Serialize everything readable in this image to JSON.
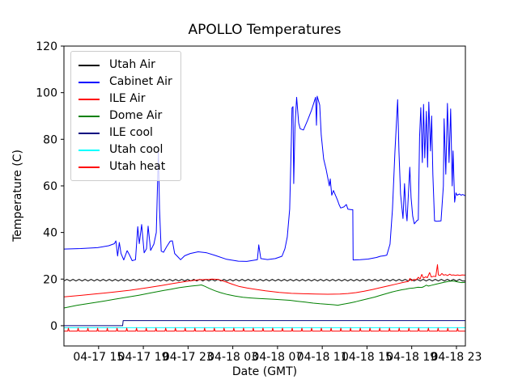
{
  "chart_data": {
    "type": "line",
    "title": "APOLLO Temperatures",
    "xlabel": "Date (GMT)",
    "ylabel": "Temperature (C)",
    "x_unit": "hours since 2000-04-17 00:00 GMT",
    "xlim_hours": [
      11.9,
      47.8
    ],
    "ylim": [
      -8.7,
      120
    ],
    "y_ticks": [
      0,
      20,
      40,
      60,
      80,
      100,
      120
    ],
    "x_ticks_hours": [
      15,
      19,
      23,
      27,
      31,
      35,
      39,
      43,
      47
    ],
    "x_tick_labels": [
      "04-17 15",
      "04-17 19",
      "04-17 23",
      "04-18 03",
      "04-18 07",
      "04-18 11",
      "04-18 15",
      "04-18 19",
      "04-18 23"
    ],
    "grid": false,
    "legend_position": "upper left",
    "series": [
      {
        "name": "Utah Air",
        "color": "#000000",
        "pattern": {
          "type": "zigzag",
          "x_start": 11.9,
          "x_end": 47.78,
          "step": 0.27,
          "high": 19.9,
          "low": 19.2
        }
      },
      {
        "name": "Cabinet Air",
        "color": "#0000ff",
        "points": [
          [
            11.9,
            32.9
          ],
          [
            13.4,
            33.1
          ],
          [
            14.9,
            33.5
          ],
          [
            15.9,
            34.3
          ],
          [
            16.4,
            35.2
          ],
          [
            16.55,
            36.4
          ],
          [
            16.7,
            29.9
          ],
          [
            16.85,
            35.7
          ],
          [
            17.0,
            31.0
          ],
          [
            17.25,
            28.2
          ],
          [
            17.55,
            32.2
          ],
          [
            17.75,
            30.5
          ],
          [
            18.0,
            27.9
          ],
          [
            18.3,
            28.3
          ],
          [
            18.5,
            42.5
          ],
          [
            18.64,
            35.2
          ],
          [
            18.85,
            43.4
          ],
          [
            19.07,
            31.3
          ],
          [
            19.28,
            33.0
          ],
          [
            19.43,
            42.7
          ],
          [
            19.65,
            32.3
          ],
          [
            19.94,
            35.0
          ],
          [
            20.16,
            40.0
          ],
          [
            20.35,
            75.0
          ],
          [
            20.45,
            50.0
          ],
          [
            20.6,
            32.0
          ],
          [
            20.8,
            31.5
          ],
          [
            21.1,
            34.0
          ],
          [
            21.4,
            36.3
          ],
          [
            21.6,
            36.4
          ],
          [
            21.8,
            31.0
          ],
          [
            22.1,
            29.5
          ],
          [
            22.33,
            28.3
          ],
          [
            22.7,
            30.0
          ],
          [
            23.2,
            31.0
          ],
          [
            23.9,
            31.7
          ],
          [
            24.65,
            31.3
          ],
          [
            25.4,
            30.2
          ],
          [
            26.45,
            28.5
          ],
          [
            27.5,
            27.7
          ],
          [
            28.25,
            27.6
          ],
          [
            28.76,
            28.0
          ],
          [
            29.2,
            28.3
          ],
          [
            29.32,
            34.7
          ],
          [
            29.5,
            28.8
          ],
          [
            30.1,
            28.4
          ],
          [
            30.8,
            28.8
          ],
          [
            31.4,
            29.8
          ],
          [
            31.66,
            33.0
          ],
          [
            31.87,
            38.0
          ],
          [
            32.09,
            50.0
          ],
          [
            32.24,
            80.0
          ],
          [
            32.3,
            93.5
          ],
          [
            32.38,
            94.0
          ],
          [
            32.45,
            61.0
          ],
          [
            32.56,
            85.0
          ],
          [
            32.71,
            98.0
          ],
          [
            32.89,
            87.0
          ],
          [
            33.03,
            84.5
          ],
          [
            33.32,
            84.0
          ],
          [
            33.68,
            88.0
          ],
          [
            34.04,
            92.5
          ],
          [
            34.4,
            98.0
          ],
          [
            34.48,
            86.0
          ],
          [
            34.55,
            98.5
          ],
          [
            34.77,
            94.7
          ],
          [
            34.91,
            81.8
          ],
          [
            35.13,
            71.5
          ],
          [
            35.35,
            67.0
          ],
          [
            35.63,
            60.0
          ],
          [
            35.71,
            63.0
          ],
          [
            35.85,
            56.0
          ],
          [
            36.0,
            58.0
          ],
          [
            36.36,
            54.0
          ],
          [
            36.5,
            52.0
          ],
          [
            36.65,
            50.5
          ],
          [
            36.94,
            51.0
          ],
          [
            37.15,
            52.0
          ],
          [
            37.3,
            50.0
          ],
          [
            37.59,
            49.8
          ],
          [
            37.73,
            49.8
          ],
          [
            37.76,
            28.2
          ],
          [
            38.4,
            28.3
          ],
          [
            39.1,
            28.6
          ],
          [
            39.85,
            29.3
          ],
          [
            40.2,
            29.8
          ],
          [
            40.55,
            30.0
          ],
          [
            40.77,
            30.3
          ],
          [
            41.06,
            35.0
          ],
          [
            41.28,
            50.0
          ],
          [
            41.5,
            75.0
          ],
          [
            41.74,
            97.0
          ],
          [
            41.86,
            75.0
          ],
          [
            42.0,
            56.5
          ],
          [
            42.22,
            46.0
          ],
          [
            42.36,
            61.0
          ],
          [
            42.47,
            50.0
          ],
          [
            42.58,
            45.0
          ],
          [
            42.83,
            68.0
          ],
          [
            42.94,
            55.0
          ],
          [
            43.09,
            47.0
          ],
          [
            43.23,
            43.7
          ],
          [
            43.45,
            45.0
          ],
          [
            43.59,
            45.5
          ],
          [
            43.7,
            81.0
          ],
          [
            43.81,
            93.6
          ],
          [
            43.95,
            70.0
          ],
          [
            44.06,
            95.0
          ],
          [
            44.17,
            72.0
          ],
          [
            44.31,
            92.0
          ],
          [
            44.42,
            68.0
          ],
          [
            44.53,
            96.0
          ],
          [
            44.68,
            75.0
          ],
          [
            44.78,
            90.0
          ],
          [
            44.89,
            65.0
          ],
          [
            45.04,
            45.0
          ],
          [
            45.25,
            44.8
          ],
          [
            45.62,
            45.0
          ],
          [
            45.83,
            60.0
          ],
          [
            45.9,
            88.8
          ],
          [
            46.05,
            65.0
          ],
          [
            46.19,
            95.4
          ],
          [
            46.34,
            70.0
          ],
          [
            46.48,
            93.0
          ],
          [
            46.62,
            60.0
          ],
          [
            46.7,
            75.0
          ],
          [
            46.84,
            53.0
          ],
          [
            46.95,
            57.0
          ],
          [
            47.06,
            56.0
          ],
          [
            47.27,
            56.5
          ],
          [
            47.42,
            56.0
          ],
          [
            47.56,
            56.3
          ],
          [
            47.78,
            55.8
          ]
        ]
      },
      {
        "name": "ILE Air",
        "color": "#ff0000",
        "points": [
          [
            11.9,
            12.4
          ],
          [
            13.43,
            13.0
          ],
          [
            14.88,
            13.7
          ],
          [
            16.32,
            14.4
          ],
          [
            17.77,
            15.2
          ],
          [
            19.22,
            16.2
          ],
          [
            20.66,
            17.3
          ],
          [
            21.75,
            18.2
          ],
          [
            22.83,
            19.0
          ],
          [
            23.92,
            19.7
          ],
          [
            24.86,
            19.9
          ],
          [
            25.15,
            20.0
          ],
          [
            25.73,
            19.8
          ],
          [
            26.31,
            18.9
          ],
          [
            26.96,
            17.8
          ],
          [
            27.53,
            16.9
          ],
          [
            28.26,
            16.2
          ],
          [
            28.76,
            15.8
          ],
          [
            29.92,
            15.0
          ],
          [
            31.15,
            14.3
          ],
          [
            32.24,
            13.9
          ],
          [
            33.32,
            13.7
          ],
          [
            34.41,
            13.6
          ],
          [
            35.49,
            13.5
          ],
          [
            36.58,
            13.6
          ],
          [
            37.3,
            13.8
          ],
          [
            38.02,
            14.2
          ],
          [
            38.75,
            14.8
          ],
          [
            39.47,
            15.5
          ],
          [
            40.19,
            16.3
          ],
          [
            40.92,
            17.1
          ],
          [
            41.64,
            17.9
          ],
          [
            42.36,
            18.7
          ],
          [
            42.7,
            19.0
          ],
          [
            42.85,
            20.3
          ],
          [
            43.0,
            19.3
          ],
          [
            43.2,
            19.9
          ],
          [
            43.4,
            19.7
          ],
          [
            43.6,
            20.8
          ],
          [
            43.75,
            20.0
          ],
          [
            43.9,
            22.0
          ],
          [
            44.05,
            20.4
          ],
          [
            44.25,
            21.0
          ],
          [
            44.4,
            20.6
          ],
          [
            44.6,
            22.8
          ],
          [
            44.75,
            20.9
          ],
          [
            44.95,
            21.2
          ],
          [
            45.15,
            21.1
          ],
          [
            45.3,
            26.2
          ],
          [
            45.38,
            21.8
          ],
          [
            45.55,
            21.6
          ],
          [
            45.7,
            22.4
          ],
          [
            45.85,
            21.7
          ],
          [
            46.05,
            21.9
          ],
          [
            46.2,
            21.5
          ],
          [
            46.4,
            22.1
          ],
          [
            46.55,
            21.7
          ],
          [
            46.75,
            21.8
          ],
          [
            46.9,
            21.6
          ],
          [
            47.1,
            21.8
          ],
          [
            47.3,
            21.6
          ],
          [
            47.5,
            21.8
          ],
          [
            47.78,
            21.7
          ]
        ]
      },
      {
        "name": "Dome Air",
        "color": "#008000",
        "points": [
          [
            11.9,
            7.6
          ],
          [
            13.05,
            8.7
          ],
          [
            14.2,
            9.6
          ],
          [
            15.3,
            10.4
          ],
          [
            16.4,
            11.3
          ],
          [
            17.5,
            12.2
          ],
          [
            18.6,
            13.1
          ],
          [
            19.7,
            14.1
          ],
          [
            20.8,
            15.1
          ],
          [
            21.5,
            15.7
          ],
          [
            22.2,
            16.3
          ],
          [
            22.8,
            16.7
          ],
          [
            23.3,
            17.0
          ],
          [
            23.85,
            17.3
          ],
          [
            24.2,
            17.5
          ],
          [
            24.5,
            16.9
          ],
          [
            24.9,
            16.0
          ],
          [
            25.4,
            15.0
          ],
          [
            25.9,
            14.2
          ],
          [
            26.5,
            13.4
          ],
          [
            27.2,
            12.7
          ],
          [
            27.9,
            12.2
          ],
          [
            28.6,
            11.9
          ],
          [
            29.3,
            11.7
          ],
          [
            30.0,
            11.5
          ],
          [
            30.7,
            11.3
          ],
          [
            31.4,
            11.1
          ],
          [
            32.1,
            10.9
          ],
          [
            32.8,
            10.5
          ],
          [
            33.5,
            10.1
          ],
          [
            34.2,
            9.7
          ],
          [
            34.8,
            9.4
          ],
          [
            35.4,
            9.2
          ],
          [
            36.0,
            9.0
          ],
          [
            36.4,
            8.8
          ],
          [
            36.7,
            9.1
          ],
          [
            37.1,
            9.4
          ],
          [
            37.5,
            9.8
          ],
          [
            38.0,
            10.3
          ],
          [
            38.5,
            10.9
          ],
          [
            39.1,
            11.6
          ],
          [
            39.7,
            12.3
          ],
          [
            40.2,
            13.0
          ],
          [
            40.7,
            13.7
          ],
          [
            41.2,
            14.4
          ],
          [
            41.7,
            15.0
          ],
          [
            42.1,
            15.4
          ],
          [
            42.45,
            15.7
          ],
          [
            42.8,
            16.0
          ],
          [
            43.2,
            16.2
          ],
          [
            43.55,
            16.5
          ],
          [
            43.9,
            16.4
          ],
          [
            44.1,
            16.8
          ],
          [
            44.3,
            17.4
          ],
          [
            44.5,
            17.0
          ],
          [
            44.8,
            17.4
          ],
          [
            45.15,
            17.8
          ],
          [
            45.5,
            18.2
          ],
          [
            45.9,
            18.6
          ],
          [
            46.2,
            18.9
          ],
          [
            46.4,
            19.1
          ],
          [
            46.7,
            19.2
          ],
          [
            46.9,
            19.0
          ],
          [
            47.1,
            18.8
          ],
          [
            47.3,
            18.6
          ],
          [
            47.5,
            18.5
          ],
          [
            47.78,
            18.6
          ]
        ]
      },
      {
        "name": "ILE cool",
        "color": "#000080",
        "points": [
          [
            11.9,
            0.0
          ],
          [
            17.15,
            0.0
          ],
          [
            17.2,
            2.2
          ],
          [
            47.78,
            2.2
          ]
        ]
      },
      {
        "name": "Utah cool",
        "color": "#00ffff",
        "points": [
          [
            11.9,
            -0.85
          ],
          [
            47.78,
            -0.85
          ]
        ]
      },
      {
        "name": "Utah heat",
        "color": "#ff0000",
        "pattern": {
          "type": "spikes",
          "x_start": 11.9,
          "x_end": 47.78,
          "baseline": -2.3,
          "spike_value": -1.05,
          "first_spike": 12.3,
          "spacing": 0.87,
          "spike_half_width": 0.06
        }
      }
    ]
  }
}
